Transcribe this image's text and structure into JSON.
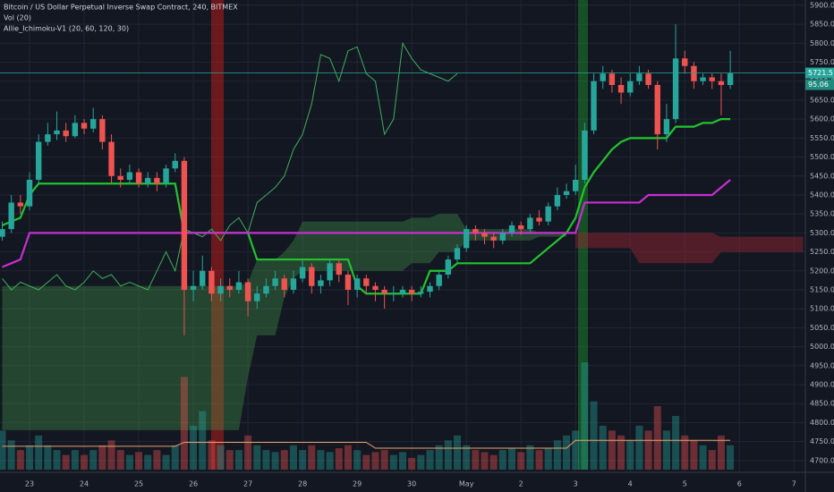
{
  "header": {
    "symbol": "Bitcoin / US Dollar Perpetual Inverse Swap Contract, 240, BITMEX",
    "volume": "Vol (20)",
    "indicator": "Allie_Ichimoku-V1 (20, 60, 120, 30)"
  },
  "chart_data": {
    "type": "candlestick",
    "categories": [
      null,
      null,
      null,
      "23",
      null,
      null,
      null,
      null,
      null,
      "24",
      null,
      null,
      null,
      null,
      null,
      "25",
      null,
      null,
      null,
      null,
      null,
      "26",
      null,
      null,
      null,
      null,
      null,
      "27",
      null,
      null,
      null,
      null,
      null,
      "28",
      null,
      null,
      null,
      null,
      null,
      "29",
      null,
      null,
      null,
      null,
      null,
      "30",
      null,
      null,
      null,
      null,
      null,
      "May",
      null,
      null,
      null,
      null,
      null,
      "2",
      null,
      null,
      null,
      null,
      null,
      "3",
      null,
      null,
      null,
      null,
      null,
      "4",
      null,
      null,
      null,
      null,
      null,
      "5",
      null,
      null,
      null,
      null,
      null,
      "6",
      null,
      null,
      null,
      null,
      null,
      "7",
      null
    ],
    "open": [
      5290,
      5310,
      5380,
      5370,
      5440,
      5540,
      5560,
      5570,
      5555,
      5590,
      5575,
      5600,
      5540,
      5450,
      5440,
      5460,
      5430,
      5445,
      5430,
      5470,
      5490,
      5150,
      5160,
      5200,
      5140,
      5160,
      5150,
      5170,
      5120,
      5140,
      5160,
      5180,
      5150,
      5180,
      5210,
      5160,
      5175,
      5220,
      5190,
      5150,
      5180,
      5160,
      5150,
      5140,
      5140,
      5150,
      5140,
      5145,
      5160,
      5190,
      5230,
      5260,
      5310,
      5300,
      5290,
      5280,
      5300,
      5320,
      5310,
      5340,
      5330,
      5370,
      5400,
      5410,
      5440,
      5570,
      5700,
      5720,
      5690,
      5670,
      5700,
      5720,
      5690,
      5560,
      5600,
      5760,
      5740,
      5700,
      5710,
      5700,
      5690,
      null,
      null,
      null,
      null,
      null,
      null,
      null,
      null
    ],
    "high": [
      5330,
      5400,
      5400,
      5460,
      5560,
      5590,
      5620,
      5590,
      5610,
      5600,
      5630,
      5610,
      5560,
      5470,
      5480,
      5470,
      5460,
      5460,
      5480,
      5510,
      5500,
      5200,
      5240,
      5210,
      5180,
      5180,
      5200,
      5180,
      5160,
      5180,
      5200,
      5190,
      5200,
      5230,
      5220,
      5190,
      5230,
      5230,
      5200,
      5190,
      5190,
      5170,
      5160,
      5160,
      5160,
      5160,
      5160,
      5170,
      5200,
      5240,
      5270,
      5320,
      5320,
      5310,
      5300,
      5310,
      5330,
      5330,
      5350,
      5360,
      5380,
      5420,
      5430,
      5480,
      5590,
      5720,
      5740,
      5730,
      5710,
      5720,
      5740,
      5730,
      5700,
      5640,
      5850,
      5780,
      5750,
      5720,
      5720,
      5720,
      5780,
      null,
      null,
      null,
      null,
      null,
      null,
      null,
      null
    ],
    "low": [
      5280,
      5300,
      5350,
      5360,
      5430,
      5530,
      5545,
      5540,
      5550,
      5560,
      5565,
      5520,
      5430,
      5420,
      5430,
      5420,
      5420,
      5410,
      5420,
      5460,
      5030,
      5120,
      5150,
      5120,
      5120,
      5130,
      5140,
      5080,
      5100,
      5130,
      5150,
      5130,
      5140,
      5170,
      5140,
      5140,
      5160,
      5170,
      5110,
      5130,
      5140,
      5120,
      5100,
      5120,
      5130,
      5120,
      5130,
      5130,
      5150,
      5180,
      5220,
      5250,
      5280,
      5270,
      5260,
      5270,
      5290,
      5295,
      5300,
      5320,
      5320,
      5360,
      5390,
      5400,
      5430,
      5560,
      5680,
      5670,
      5640,
      5660,
      5690,
      5680,
      5520,
      5540,
      5590,
      5720,
      5680,
      5690,
      5680,
      5610,
      5680,
      null,
      null,
      null,
      null,
      null,
      null,
      null,
      null
    ],
    "close": [
      5310,
      5380,
      5370,
      5440,
      5540,
      5560,
      5570,
      5555,
      5590,
      5575,
      5600,
      5540,
      5450,
      5440,
      5460,
      5430,
      5445,
      5430,
      5470,
      5490,
      5150,
      5160,
      5200,
      5140,
      5160,
      5150,
      5170,
      5120,
      5140,
      5160,
      5180,
      5150,
      5180,
      5210,
      5160,
      5175,
      5220,
      5190,
      5150,
      5180,
      5160,
      5150,
      5140,
      5140,
      5150,
      5140,
      5145,
      5160,
      5190,
      5230,
      5260,
      5310,
      5300,
      5290,
      5280,
      5300,
      5320,
      5310,
      5340,
      5330,
      5370,
      5400,
      5410,
      5440,
      5570,
      5700,
      5720,
      5690,
      5670,
      5700,
      5720,
      5690,
      5560,
      5600,
      5760,
      5740,
      5700,
      5710,
      5700,
      5690,
      5721.5,
      null,
      null,
      null,
      null,
      null,
      null,
      null,
      null
    ],
    "up_color": "#26a69a",
    "down_color": "#ef5350",
    "lines": [
      {
        "color": "#3fae5a",
        "width": 1,
        "values": [
          5180,
          5150,
          5170,
          5160,
          5150,
          5170,
          5190,
          5160,
          5150,
          5170,
          5200,
          5180,
          5190,
          5160,
          5170,
          5160,
          5150,
          5200,
          5250,
          5200,
          5310,
          5300,
          5290,
          5310,
          5280,
          5320,
          5340,
          5300,
          5380,
          5400,
          5420,
          5450,
          5520,
          5560,
          5640,
          5770,
          5760,
          5700,
          5780,
          5790,
          5720,
          5700,
          5560,
          5600,
          5800,
          5760,
          5730,
          5720,
          5710,
          5700,
          5720,
          null,
          null,
          null,
          null,
          null,
          null,
          null,
          null,
          null,
          null,
          null,
          null,
          null,
          null,
          null,
          null,
          null,
          null,
          null,
          null,
          null,
          null,
          null,
          null,
          null,
          null,
          null,
          null,
          null,
          null,
          null,
          null,
          null,
          null,
          null,
          null,
          null,
          null
        ]
      },
      {
        "color": "#22c32e",
        "width": 2.2,
        "values": [
          5320,
          5330,
          5340,
          5400,
          5430,
          5430,
          5430,
          5430,
          5430,
          5430,
          5430,
          5430,
          5430,
          5430,
          5430,
          5430,
          5430,
          5430,
          5430,
          5430,
          5300,
          5300,
          5300,
          5300,
          5300,
          5300,
          5300,
          5300,
          5230,
          5230,
          5230,
          5230,
          5230,
          5230,
          5230,
          5230,
          5230,
          5230,
          5230,
          5160,
          5140,
          5140,
          5140,
          5140,
          5140,
          5140,
          5140,
          5200,
          5200,
          5200,
          5220,
          5220,
          5220,
          5220,
          5220,
          5220,
          5220,
          5220,
          5220,
          5240,
          5260,
          5280,
          5300,
          5340,
          5420,
          5460,
          5490,
          5520,
          5540,
          5550,
          5550,
          5550,
          5550,
          5550,
          5580,
          5580,
          5580,
          5590,
          5590,
          5600,
          5600,
          null,
          null,
          null,
          null,
          null,
          null,
          null,
          null
        ]
      },
      {
        "color": "#c62fd0",
        "width": 2.2,
        "values": [
          5210,
          5220,
          5230,
          5300,
          5300,
          5300,
          5300,
          5300,
          5300,
          5300,
          5300,
          5300,
          5300,
          5300,
          5300,
          5300,
          5300,
          5300,
          5300,
          5300,
          5300,
          5300,
          5300,
          5300,
          5300,
          5300,
          5300,
          5300,
          5300,
          5300,
          5300,
          5300,
          5300,
          5300,
          5300,
          5300,
          5300,
          5300,
          5300,
          5300,
          5300,
          5300,
          5300,
          5300,
          5300,
          5300,
          5300,
          5300,
          5300,
          5300,
          5300,
          5300,
          5300,
          5300,
          5300,
          5300,
          5300,
          5300,
          5300,
          5300,
          5300,
          5300,
          5300,
          5300,
          5380,
          5380,
          5380,
          5380,
          5380,
          5380,
          5380,
          5400,
          5400,
          5400,
          5400,
          5400,
          5400,
          5400,
          5400,
          5420,
          5440,
          null,
          null,
          null,
          null,
          null,
          null,
          null,
          null
        ]
      }
    ],
    "cloud": {
      "up_color": "#4caf50",
      "down_color": "#9c2533",
      "span_a": [
        5160,
        5160,
        5160,
        5160,
        5160,
        5160,
        5160,
        5160,
        5160,
        5160,
        5160,
        5160,
        5160,
        5160,
        5160,
        5160,
        5160,
        5160,
        5160,
        5160,
        5160,
        5160,
        5160,
        5160,
        5160,
        5160,
        5160,
        5170,
        5230,
        5230,
        5230,
        5250,
        5280,
        5330,
        5330,
        5330,
        5330,
        5330,
        5330,
        5330,
        5330,
        5330,
        5330,
        5330,
        5330,
        5340,
        5340,
        5340,
        5350,
        5350,
        5350,
        5310,
        5310,
        5310,
        5310,
        5310,
        5310,
        5310,
        5310,
        5300,
        5300,
        5300,
        5300,
        5260,
        5260,
        5260,
        5260,
        5260,
        5260,
        5260,
        5220,
        5220,
        5220,
        5220,
        5220,
        5220,
        5220,
        5220,
        5220,
        5250,
        5250,
        5250,
        5250,
        5250,
        5250,
        5250,
        5250,
        5250,
        5250
      ],
      "span_b": [
        4780,
        4780,
        4780,
        4780,
        4780,
        4780,
        4780,
        4780,
        4780,
        4780,
        4780,
        4780,
        4780,
        4780,
        4780,
        4780,
        4780,
        4780,
        4780,
        4780,
        4780,
        4780,
        4780,
        4780,
        4780,
        4780,
        4780,
        4920,
        5030,
        5030,
        5030,
        5130,
        5180,
        5200,
        5200,
        5200,
        5200,
        5200,
        5200,
        5200,
        5200,
        5200,
        5200,
        5200,
        5200,
        5220,
        5220,
        5220,
        5250,
        5250,
        5250,
        5280,
        5280,
        5280,
        5280,
        5280,
        5280,
        5280,
        5280,
        5290,
        5290,
        5290,
        5290,
        5300,
        5300,
        5300,
        5300,
        5300,
        5300,
        5300,
        5300,
        5300,
        5300,
        5300,
        5300,
        5300,
        5300,
        5300,
        5300,
        5290,
        5290,
        5290,
        5290,
        5290,
        5290,
        5290,
        5290,
        5290,
        5290
      ]
    },
    "volume": {
      "ma_color": "#e8a06a",
      "values": [
        40,
        30,
        20,
        25,
        35,
        25,
        20,
        15,
        20,
        15,
        20,
        25,
        30,
        20,
        15,
        18,
        15,
        20,
        15,
        25,
        95,
        45,
        60,
        30,
        25,
        20,
        20,
        35,
        25,
        20,
        18,
        20,
        25,
        20,
        25,
        20,
        18,
        22,
        25,
        20,
        15,
        18,
        20,
        15,
        18,
        12,
        15,
        20,
        25,
        30,
        35,
        25,
        20,
        18,
        15,
        20,
        22,
        18,
        25,
        20,
        22,
        30,
        35,
        40,
        110,
        70,
        45,
        40,
        35,
        30,
        45,
        40,
        65,
        40,
        55,
        35,
        30,
        25,
        20,
        35,
        25,
        null,
        null,
        null,
        null,
        null,
        null,
        null,
        null
      ],
      "ma": [
        24,
        24,
        24,
        24,
        24,
        24,
        24,
        24,
        24,
        24,
        24,
        24,
        24,
        24,
        24,
        24,
        24,
        24,
        24,
        24,
        28,
        28,
        28,
        28,
        28,
        28,
        28,
        28,
        28,
        28,
        28,
        28,
        28,
        28,
        28,
        28,
        28,
        28,
        28,
        28,
        28,
        22,
        22,
        22,
        22,
        22,
        22,
        22,
        22,
        22,
        22,
        22,
        22,
        22,
        22,
        22,
        22,
        22,
        22,
        22,
        22,
        22,
        22,
        30,
        30,
        30,
        30,
        30,
        30,
        30,
        30,
        30,
        30,
        30,
        30,
        30,
        30,
        30,
        30,
        30,
        30,
        null,
        null,
        null,
        null,
        null,
        null,
        null,
        null
      ]
    },
    "last_price": 5721.5,
    "secondary_label": 95.06,
    "ylim": [
      4676,
      5914
    ],
    "yticks": [
      {
        "value": 4700,
        "label": "4700.0"
      },
      {
        "value": 4750,
        "label": "4750.0"
      },
      {
        "value": 4800,
        "label": "4800.0"
      },
      {
        "value": 4850,
        "label": "4850.0"
      },
      {
        "value": 4900,
        "label": "4900.0"
      },
      {
        "value": 4950,
        "label": "4950.0"
      },
      {
        "value": 5000,
        "label": "5000.0"
      },
      {
        "value": 5050,
        "label": "5050.0"
      },
      {
        "value": 5100,
        "label": "5100.0"
      },
      {
        "value": 5150,
        "label": "5150.0"
      },
      {
        "value": 5200,
        "label": "5200.0"
      },
      {
        "value": 5250,
        "label": "5250.0"
      },
      {
        "value": 5300,
        "label": "5300.0"
      },
      {
        "value": 5350,
        "label": "5350.0"
      },
      {
        "value": 5400,
        "label": "5400.0"
      },
      {
        "value": 5450,
        "label": "5450.0"
      },
      {
        "value": 5500,
        "label": "5500.0"
      },
      {
        "value": 5550,
        "label": "5550.0"
      },
      {
        "value": 5600,
        "label": "5600.0"
      },
      {
        "value": 5650,
        "label": "5650.0"
      },
      {
        "value": 5700,
        "label": "5700.0"
      },
      {
        "value": 5750,
        "label": "5750.0"
      },
      {
        "value": 5800,
        "label": "5800.0"
      },
      {
        "value": 5850,
        "label": "5850.0"
      },
      {
        "value": 5900,
        "label": "5900.0"
      }
    ],
    "grid": true
  }
}
